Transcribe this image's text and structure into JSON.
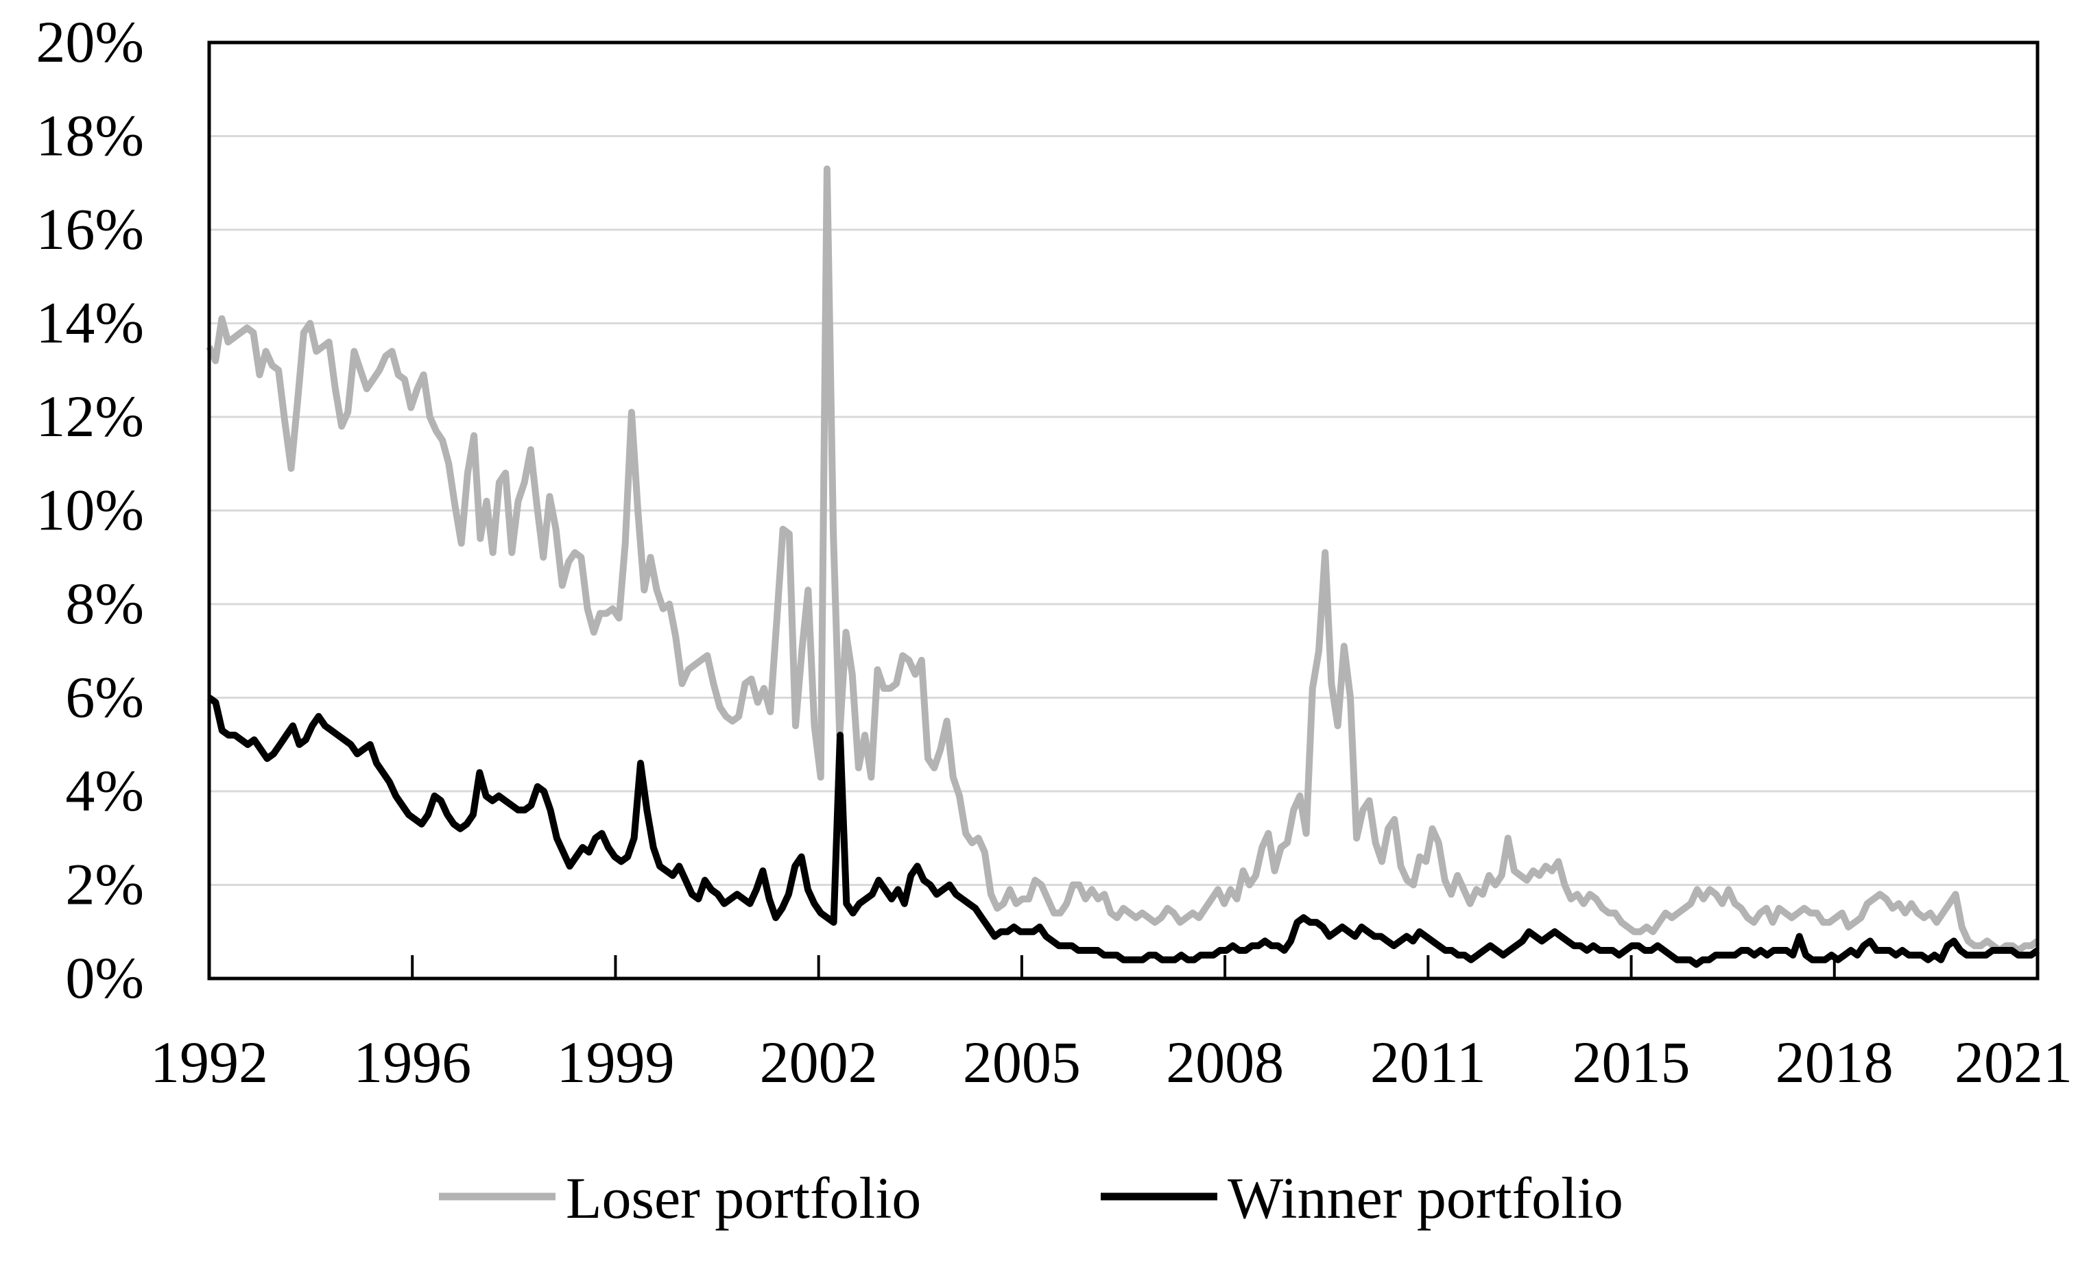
{
  "chart_data": {
    "type": "line",
    "title": "",
    "xlabel": "",
    "ylabel": "",
    "ylim": [
      0,
      20
    ],
    "y_unit": "%",
    "y_ticks": [
      0,
      2,
      4,
      6,
      8,
      10,
      12,
      14,
      16,
      18,
      20
    ],
    "y_tick_labels": [
      "0%",
      "2%",
      "4%",
      "6%",
      "8%",
      "10%",
      "12%",
      "14%",
      "16%",
      "18%",
      "20%"
    ],
    "x_tick_labels": [
      "1992",
      "1996",
      "1999",
      "2002",
      "2005",
      "2008",
      "2011",
      "2015",
      "2018",
      "2021"
    ],
    "grid": true,
    "legend_position": "bottom",
    "series": [
      {
        "name": "Loser portfolio",
        "color": "#b3b3b3",
        "values": [
          13.5,
          13.2,
          14.1,
          13.6,
          13.7,
          13.8,
          13.9,
          13.8,
          12.9,
          13.4,
          13.1,
          13.0,
          11.9,
          10.9,
          12.3,
          13.8,
          14.0,
          13.4,
          13.5,
          13.6,
          12.6,
          11.8,
          12.1,
          13.4,
          13.0,
          12.6,
          12.8,
          13.0,
          13.3,
          13.4,
          12.9,
          12.8,
          12.2,
          12.6,
          12.9,
          12.0,
          11.7,
          11.5,
          11.0,
          10.1,
          9.3,
          10.8,
          11.6,
          9.4,
          10.2,
          9.1,
          10.6,
          10.8,
          9.1,
          10.2,
          10.6,
          11.3,
          10.1,
          9.0,
          10.3,
          9.6,
          8.4,
          8.9,
          9.1,
          9.0,
          7.9,
          7.4,
          7.8,
          7.8,
          7.9,
          7.7,
          9.3,
          12.1,
          10.0,
          8.3,
          9.0,
          8.3,
          7.9,
          8.0,
          7.3,
          6.3,
          6.6,
          6.7,
          6.8,
          6.9,
          6.3,
          5.8,
          5.6,
          5.5,
          5.6,
          6.3,
          6.4,
          5.9,
          6.2,
          5.7,
          7.6,
          9.6,
          9.5,
          5.4,
          7.0,
          8.3,
          5.4,
          4.3,
          17.3,
          9.5,
          5.2,
          7.4,
          6.5,
          4.5,
          5.2,
          4.3,
          6.6,
          6.2,
          6.2,
          6.3,
          6.9,
          6.8,
          6.5,
          6.8,
          4.7,
          4.5,
          4.9,
          5.5,
          4.3,
          3.9,
          3.1,
          2.9,
          3.0,
          2.7,
          1.8,
          1.5,
          1.6,
          1.9,
          1.6,
          1.7,
          1.7,
          2.1,
          2.0,
          1.7,
          1.4,
          1.4,
          1.6,
          2.0,
          2.0,
          1.7,
          1.9,
          1.7,
          1.8,
          1.4,
          1.3,
          1.5,
          1.4,
          1.3,
          1.4,
          1.3,
          1.2,
          1.3,
          1.5,
          1.4,
          1.2,
          1.3,
          1.4,
          1.3,
          1.5,
          1.7,
          1.9,
          1.6,
          1.9,
          1.7,
          2.3,
          2.0,
          2.2,
          2.8,
          3.1,
          2.3,
          2.8,
          2.9,
          3.6,
          3.9,
          3.1,
          6.2,
          7.0,
          9.1,
          6.3,
          5.4,
          7.1,
          6.0,
          3.0,
          3.6,
          3.8,
          2.9,
          2.5,
          3.2,
          3.4,
          2.4,
          2.1,
          2.0,
          2.6,
          2.5,
          3.2,
          2.9,
          2.1,
          1.8,
          2.2,
          1.9,
          1.6,
          1.9,
          1.8,
          2.2,
          2.0,
          2.2,
          3.0,
          2.3,
          2.2,
          2.1,
          2.3,
          2.2,
          2.4,
          2.3,
          2.5,
          2.0,
          1.7,
          1.8,
          1.6,
          1.8,
          1.7,
          1.5,
          1.4,
          1.4,
          1.2,
          1.1,
          1.0,
          1.0,
          1.1,
          1.0,
          1.2,
          1.4,
          1.3,
          1.4,
          1.5,
          1.6,
          1.9,
          1.7,
          1.9,
          1.8,
          1.6,
          1.9,
          1.6,
          1.5,
          1.3,
          1.2,
          1.4,
          1.5,
          1.2,
          1.5,
          1.4,
          1.3,
          1.4,
          1.5,
          1.4,
          1.4,
          1.2,
          1.2,
          1.3,
          1.4,
          1.1,
          1.2,
          1.3,
          1.6,
          1.7,
          1.8,
          1.7,
          1.5,
          1.6,
          1.4,
          1.6,
          1.4,
          1.3,
          1.4,
          1.2,
          1.4,
          1.6,
          1.8,
          1.1,
          0.8,
          0.7,
          0.7,
          0.8,
          0.7,
          0.6,
          0.7,
          0.7,
          0.6,
          0.7,
          0.7,
          0.8
        ]
      },
      {
        "name": "Winner portfolio",
        "color": "#000000",
        "values": [
          6.0,
          5.9,
          5.3,
          5.2,
          5.2,
          5.1,
          5.0,
          5.1,
          4.9,
          4.7,
          4.8,
          5.0,
          5.2,
          5.4,
          5.0,
          5.1,
          5.4,
          5.6,
          5.4,
          5.3,
          5.2,
          5.1,
          5.0,
          4.8,
          4.9,
          5.0,
          4.6,
          4.4,
          4.2,
          3.9,
          3.7,
          3.5,
          3.4,
          3.3,
          3.5,
          3.9,
          3.8,
          3.5,
          3.3,
          3.2,
          3.3,
          3.5,
          4.4,
          3.9,
          3.8,
          3.9,
          3.8,
          3.7,
          3.6,
          3.6,
          3.7,
          4.1,
          4.0,
          3.6,
          3.0,
          2.7,
          2.4,
          2.6,
          2.8,
          2.7,
          3.0,
          3.1,
          2.8,
          2.6,
          2.5,
          2.6,
          3.0,
          4.6,
          3.6,
          2.8,
          2.4,
          2.3,
          2.2,
          2.4,
          2.1,
          1.8,
          1.7,
          2.1,
          1.9,
          1.8,
          1.6,
          1.7,
          1.8,
          1.7,
          1.6,
          1.9,
          2.3,
          1.7,
          1.3,
          1.5,
          1.8,
          2.4,
          2.6,
          1.9,
          1.6,
          1.4,
          1.3,
          1.2,
          5.2,
          1.6,
          1.4,
          1.6,
          1.7,
          1.8,
          2.1,
          1.9,
          1.7,
          1.9,
          1.6,
          2.2,
          2.4,
          2.1,
          2.0,
          1.8,
          1.9,
          2.0,
          1.8,
          1.7,
          1.6,
          1.5,
          1.3,
          1.1,
          0.9,
          1.0,
          1.0,
          1.1,
          1.0,
          1.0,
          1.0,
          1.1,
          0.9,
          0.8,
          0.7,
          0.7,
          0.7,
          0.6,
          0.6,
          0.6,
          0.6,
          0.5,
          0.5,
          0.5,
          0.4,
          0.4,
          0.4,
          0.4,
          0.5,
          0.5,
          0.4,
          0.4,
          0.4,
          0.5,
          0.4,
          0.4,
          0.5,
          0.5,
          0.5,
          0.6,
          0.6,
          0.7,
          0.6,
          0.6,
          0.7,
          0.7,
          0.8,
          0.7,
          0.7,
          0.6,
          0.8,
          1.2,
          1.3,
          1.2,
          1.2,
          1.1,
          0.9,
          1.0,
          1.1,
          1.0,
          0.9,
          1.1,
          1.0,
          0.9,
          0.9,
          0.8,
          0.7,
          0.8,
          0.9,
          0.8,
          1.0,
          0.9,
          0.8,
          0.7,
          0.6,
          0.6,
          0.5,
          0.5,
          0.4,
          0.5,
          0.6,
          0.7,
          0.6,
          0.5,
          0.6,
          0.7,
          0.8,
          1.0,
          0.9,
          0.8,
          0.9,
          1.0,
          0.9,
          0.8,
          0.7,
          0.7,
          0.6,
          0.7,
          0.6,
          0.6,
          0.6,
          0.5,
          0.6,
          0.7,
          0.7,
          0.6,
          0.6,
          0.7,
          0.6,
          0.5,
          0.4,
          0.4,
          0.4,
          0.3,
          0.4,
          0.4,
          0.5,
          0.5,
          0.5,
          0.5,
          0.6,
          0.6,
          0.5,
          0.6,
          0.5,
          0.6,
          0.6,
          0.6,
          0.5,
          0.9,
          0.5,
          0.4,
          0.4,
          0.4,
          0.5,
          0.4,
          0.5,
          0.6,
          0.5,
          0.7,
          0.8,
          0.6,
          0.6,
          0.6,
          0.5,
          0.6,
          0.5,
          0.5,
          0.5,
          0.4,
          0.5,
          0.4,
          0.7,
          0.8,
          0.6,
          0.5,
          0.5,
          0.5,
          0.5,
          0.6,
          0.6,
          0.6,
          0.6,
          0.5,
          0.5,
          0.5,
          0.6
        ]
      }
    ]
  }
}
